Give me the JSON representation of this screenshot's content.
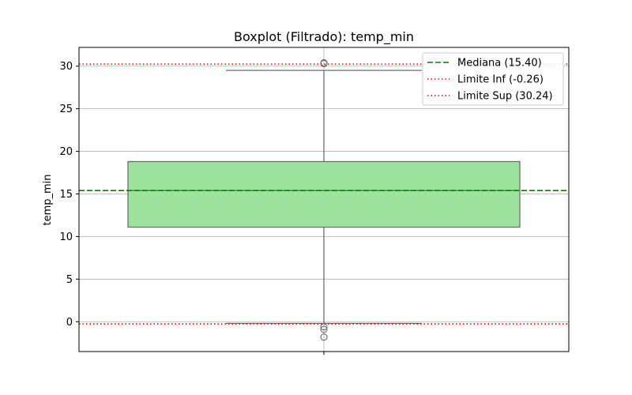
{
  "chart_data": {
    "type": "box",
    "title": "Boxplot (Filtrado): temp_min",
    "xlabel": "",
    "ylabel": "temp_min",
    "ylim": [
      -3.5,
      32.2
    ],
    "yticks": [
      0,
      5,
      10,
      15,
      20,
      25,
      30
    ],
    "grid": true,
    "legend_position": "top-right",
    "box": {
      "q1": 11.1,
      "median": 15.4,
      "q3": 18.8,
      "whisker_low": -0.2,
      "whisker_high": 29.5,
      "outliers": [
        30.3,
        30.4,
        -0.6,
        -0.9,
        -1.8
      ],
      "fill_color": "#9de39d",
      "edge_color": "#6e6e6e"
    },
    "reference_lines": [
      {
        "label": "Mediana (15.40)",
        "value": 15.4,
        "color": "#008000",
        "style": "dashed"
      },
      {
        "label": "Limite Inf (-0.26)",
        "value": -0.26,
        "color": "#ff0000",
        "style": "dotted"
      },
      {
        "label": "Limite Sup (30.24)",
        "value": 30.24,
        "color": "#ff0000",
        "style": "dotted"
      }
    ]
  }
}
